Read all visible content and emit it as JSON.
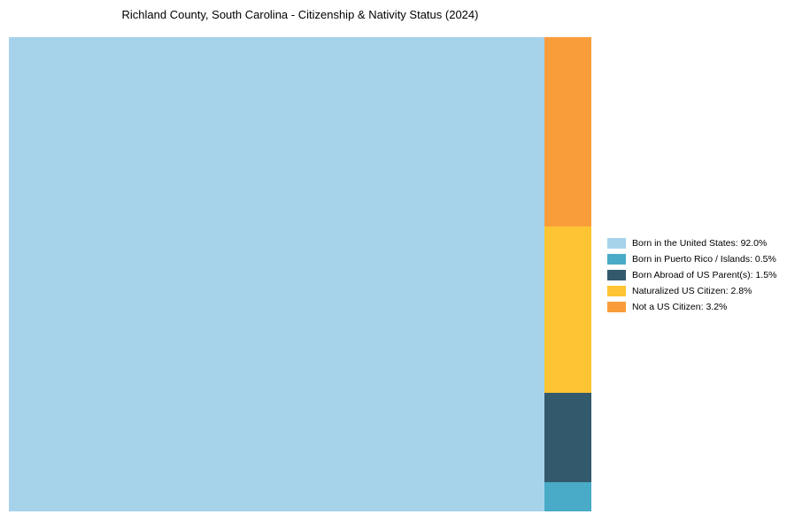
{
  "chart_data": {
    "type": "treemap",
    "title": "Richland County, South Carolina - Citizenship & Nativity Status (2024)",
    "items": [
      {
        "label": "Born in the United States",
        "value": 92.0,
        "color": "#a6d3ea",
        "legend_label": "Born in the United States: 92.0%"
      },
      {
        "label": "Born in Puerto Rico / Islands",
        "value": 0.5,
        "color": "#49abc8",
        "legend_label": "Born in Puerto Rico / Islands: 0.5%"
      },
      {
        "label": "Born Abroad of US Parent(s)",
        "value": 1.5,
        "color": "#33596c",
        "legend_label": "Born Abroad of US Parent(s): 1.5%"
      },
      {
        "label": "Naturalized US Citizen",
        "value": 2.8,
        "color": "#fec433",
        "legend_label": "Naturalized US Citizen: 2.8%"
      },
      {
        "label": "Not a US Citizen",
        "value": 3.2,
        "color": "#f99d3b",
        "legend_label": "Not a US Citizen: 3.2%"
      }
    ],
    "layout": {
      "legend_position": "right",
      "grid": false,
      "main_cell": "Born in the United States",
      "column_order_top_to_bottom": [
        "Not a US Citizen",
        "Naturalized US Citizen",
        "Born Abroad of US Parent(s)",
        "Born in Puerto Rico / Islands"
      ]
    }
  }
}
